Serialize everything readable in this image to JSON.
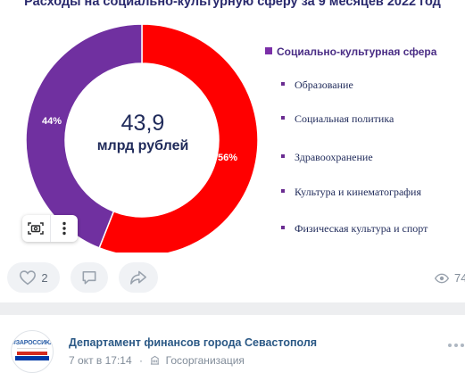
{
  "post_image": {
    "title": "Расходы на социально-культурную сферу за 9 месяцев 2022 год",
    "center_value": "43,9",
    "center_unit": "млрд рублей",
    "legend_header": "Социально-культурная сфера",
    "legend_items": [
      "Образование",
      "Социальная политика",
      "Здравоохранение",
      "Культура и кинематография",
      "Физическая культура и спорт"
    ],
    "photo_tools": {
      "scan_icon": "camera-scan-icon",
      "more_icon": "vertical-dots-icon"
    }
  },
  "chart_data": {
    "type": "pie",
    "title": "Расходы на социально-культурную сферу за 9 месяцев 2022 год",
    "slices": [
      {
        "label": "56%",
        "value": 56,
        "color": "#ff0000"
      },
      {
        "label": "44%",
        "value": 44,
        "color": "#7030a0"
      }
    ],
    "center_text": [
      "43,9",
      "млрд рублей"
    ]
  },
  "actions": {
    "like_count": "2",
    "views_count": "74",
    "icons": {
      "like": "heart-icon",
      "comment": "comment-icon",
      "share": "share-icon",
      "views": "eye-icon"
    }
  },
  "next_post": {
    "author": "Департамент финансов города Севастополя",
    "avatar_text": "#ЗАРОССИЮ",
    "date": "7 окт в 17:14",
    "separator": "·",
    "category": "Госорганизация",
    "icons": {
      "category": "building-icon",
      "more": "more-dots-icon"
    }
  },
  "colors": {
    "red_slice": "#ff0000",
    "purple_slice": "#7030a0",
    "link": "#2a5885",
    "secondary_text": "#818c99",
    "pill_bg": "#f0f2f5"
  }
}
